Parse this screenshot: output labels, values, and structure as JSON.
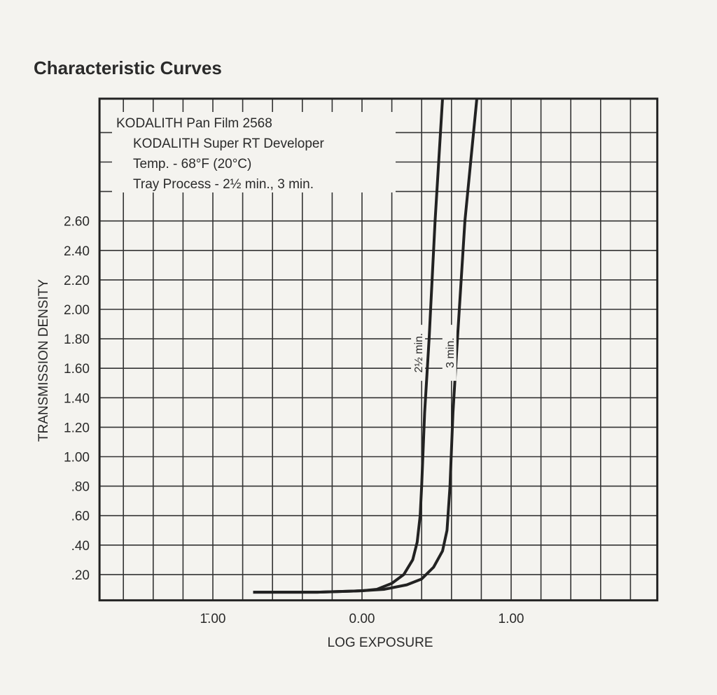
{
  "chart_data": {
    "type": "line",
    "title": "Characteristic Curves",
    "legend_lines": [
      "KODALITH Pan Film 2568",
      "KODALITH Super RT Developer",
      "Temp. - 68°F (20°C)",
      "Tray Process - 2½ min., 3 min."
    ],
    "legend_placement": "top-left",
    "xlabel": "LOG EXPOSURE",
    "ylabel": "TRANSMISSION DENSITY",
    "xlim": [
      -1.76,
      1.98
    ],
    "ylim": [
      0,
      3.43
    ],
    "grid": true,
    "x_ticks": [
      {
        "value": -1,
        "label": "1̄.00"
      },
      {
        "value": 0,
        "label": "0.00"
      },
      {
        "value": 1,
        "label": "1.00"
      }
    ],
    "y_ticks": [
      {
        "value": 0.2,
        "label": ".20"
      },
      {
        "value": 0.4,
        "label": ".40"
      },
      {
        "value": 0.6,
        "label": ".60"
      },
      {
        "value": 0.8,
        "label": ".80"
      },
      {
        "value": 1.0,
        "label": "1.00"
      },
      {
        "value": 1.2,
        "label": "1.20"
      },
      {
        "value": 1.4,
        "label": "1.40"
      },
      {
        "value": 1.6,
        "label": "1.60"
      },
      {
        "value": 1.8,
        "label": "1.80"
      },
      {
        "value": 2.0,
        "label": "2.00"
      },
      {
        "value": 2.2,
        "label": "2.20"
      },
      {
        "value": 2.4,
        "label": "2.40"
      },
      {
        "value": 2.6,
        "label": "2.60"
      }
    ],
    "series": [
      {
        "name": "2½ min.",
        "label_at": [
          0.39,
          1.8
        ],
        "x": [
          -0.73,
          -0.3,
          0.0,
          0.1,
          0.2,
          0.28,
          0.34,
          0.37,
          0.39,
          0.4,
          0.42,
          0.45,
          0.49,
          0.54
        ],
        "y": [
          0.08,
          0.08,
          0.09,
          0.1,
          0.14,
          0.2,
          0.3,
          0.42,
          0.6,
          0.8,
          1.3,
          1.8,
          2.6,
          3.43
        ]
      },
      {
        "name": "3 min.",
        "label_at": [
          0.6,
          1.8
        ],
        "x": [
          -0.73,
          -0.3,
          0.0,
          0.15,
          0.3,
          0.4,
          0.48,
          0.54,
          0.57,
          0.59,
          0.61,
          0.64,
          0.69,
          0.77
        ],
        "y": [
          0.08,
          0.08,
          0.09,
          0.1,
          0.13,
          0.17,
          0.25,
          0.36,
          0.5,
          0.8,
          1.3,
          1.8,
          2.6,
          3.43
        ]
      }
    ]
  }
}
